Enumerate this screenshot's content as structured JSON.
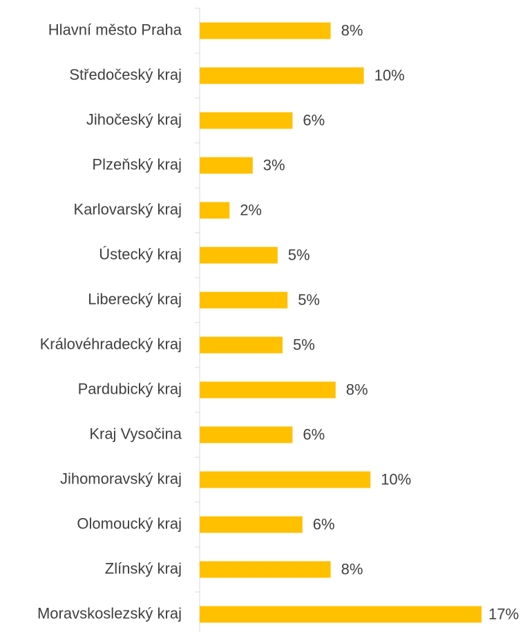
{
  "chart_data": {
    "type": "hbar",
    "color": "#ffc000",
    "categories": [
      "Hlavní město Praha",
      "Středočeský kraj",
      "Jihočeský kraj",
      "Plzeňský kraj",
      "Karlovarský kraj",
      "Ústecký kraj",
      "Liberecký kraj",
      "Královéhradecký kraj",
      "Pardubický kraj",
      "Kraj Vysočina",
      "Jihomoravský kraj",
      "Olomoucký kraj",
      "Zlínský kraj",
      "Moravskoslezský kraj"
    ],
    "values": [
      7.9,
      9.9,
      5.6,
      3.2,
      1.8,
      4.7,
      5.3,
      5.0,
      8.2,
      5.6,
      10.3,
      6.2,
      7.9,
      17.0
    ],
    "value_labels": [
      "8%",
      "10%",
      "6%",
      "3%",
      "2%",
      "5%",
      "5%",
      "5%",
      "8%",
      "6%",
      "10%",
      "6%",
      "8%",
      "17%"
    ],
    "xlim": [
      0,
      19.5
    ]
  }
}
